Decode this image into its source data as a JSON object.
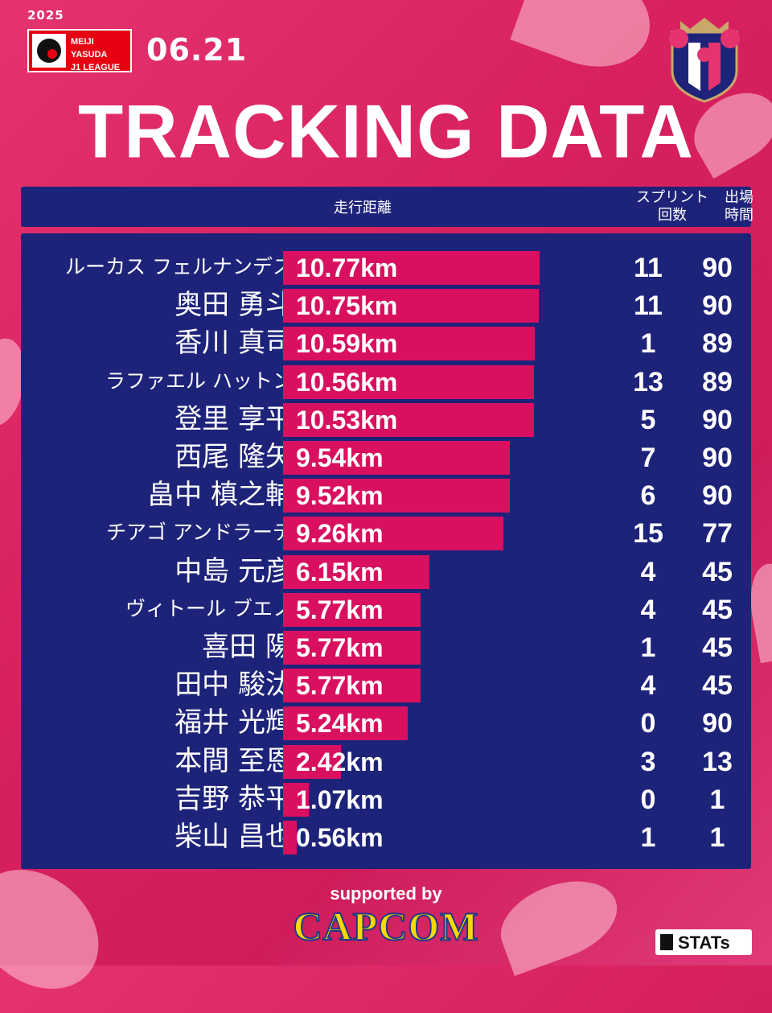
{
  "header": {
    "year": "2025",
    "league_line1": "MEIJI YASUDA",
    "league_line2": "J1 LEAGUE",
    "date": "06.21",
    "title": "TRACKING DATA"
  },
  "table_header": {
    "distance": "走行距離",
    "sprint_line1": "スプリント",
    "sprint_line2": "回数",
    "minutes_line1": "出場",
    "minutes_line2": "時間"
  },
  "footer": {
    "supported": "supported by",
    "sponsor": "CAPCOM",
    "stats": "STATs"
  },
  "colors": {
    "bar": "#d8105f",
    "panel": "#1e237a",
    "background": "#d8215e"
  },
  "chart_data": {
    "type": "bar",
    "unit": "km",
    "categories": [
      "ルーカス フェルナンデス",
      "奥田 勇斗",
      "香川 真司",
      "ラファエル ハットン",
      "登里 享平",
      "西尾 隆矢",
      "畠中 槙之輔",
      "チアゴ アンドラーデ",
      "中島 元彦",
      "ヴィトール ブエノ",
      "喜田 陽",
      "田中 駿汰",
      "福井 光輝",
      "本間 至恩",
      "吉野 恭平",
      "柴山 昌也"
    ],
    "labels": [
      "10.77km",
      "10.75km",
      "10.59km",
      "10.56km",
      "10.53km",
      "9.54km",
      "9.52km",
      "9.26km",
      "6.15km",
      "5.77km",
      "5.77km",
      "5.77km",
      "5.24km",
      "2.42km",
      "1.07km",
      "0.56km"
    ],
    "values": [
      10.77,
      10.75,
      10.59,
      10.56,
      10.53,
      9.54,
      9.52,
      9.26,
      6.15,
      5.77,
      5.77,
      5.77,
      5.24,
      2.42,
      1.07,
      0.56
    ],
    "sprints": [
      11,
      11,
      1,
      13,
      5,
      7,
      6,
      15,
      4,
      4,
      1,
      4,
      0,
      3,
      0,
      1
    ],
    "minutes": [
      90,
      90,
      89,
      89,
      90,
      90,
      90,
      77,
      45,
      45,
      45,
      45,
      90,
      13,
      1,
      1
    ],
    "xlim": [
      0,
      12
    ]
  }
}
